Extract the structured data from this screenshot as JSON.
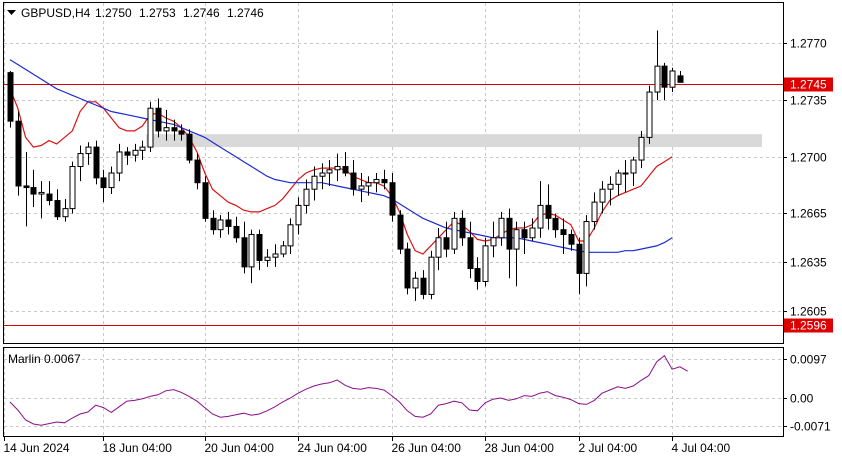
{
  "chart_data": [
    {
      "type": "candlestick",
      "title": "GBPUSD,H4",
      "ohlc_readout": [
        "1.2750",
        "1.2753",
        "1.2746",
        "1.2746"
      ],
      "y_range": [
        1.2585,
        1.2795
      ],
      "y_ticks": [
        "1.2770",
        "1.2735",
        "1.2700",
        "1.2665",
        "1.2635",
        "1.2605"
      ],
      "x_ticks": [
        "14 Jun 2024",
        "18 Jun 04:00",
        "20 Jun 04:00",
        "24 Jun 04:00",
        "26 Jun 04:00",
        "28 Jun 04:00",
        "2 Jul 04:00",
        "4 Jul 04:00"
      ],
      "grid": true,
      "horizontal_levels": [
        {
          "value": 1.2745,
          "label": "1.2745",
          "color": "#dd0000"
        },
        {
          "value": 1.2596,
          "label": "1.2596",
          "color": "#dd0000"
        }
      ],
      "zone": {
        "from": 1.2706,
        "to": 1.2714,
        "start_bar": 18,
        "color": "#d9d9d9"
      },
      "candles": [
        [
          1.2752,
          1.2753,
          1.2718,
          1.2722
        ],
        [
          1.2722,
          1.2728,
          1.2676,
          1.2682
        ],
        [
          1.2682,
          1.2703,
          1.2657,
          1.2681
        ],
        [
          1.2681,
          1.2692,
          1.2669,
          1.2677
        ],
        [
          1.2677,
          1.2685,
          1.2662,
          1.2678
        ],
        [
          1.2677,
          1.2685,
          1.267,
          1.2673
        ],
        [
          1.2673,
          1.268,
          1.2661,
          1.2663
        ],
        [
          1.2663,
          1.2674,
          1.266,
          1.2668
        ],
        [
          1.2668,
          1.2697,
          1.2665,
          1.2694
        ],
        [
          1.2694,
          1.2707,
          1.2685,
          1.2702
        ],
        [
          1.2702,
          1.2709,
          1.2695,
          1.2706
        ],
        [
          1.2706,
          1.271,
          1.2683,
          1.2687
        ],
        [
          1.2687,
          1.2692,
          1.2672,
          1.2681
        ],
        [
          1.2681,
          1.2694,
          1.2677,
          1.269
        ],
        [
          1.269,
          1.2708,
          1.2685,
          1.2703
        ],
        [
          1.2703,
          1.2706,
          1.2695,
          1.2701
        ],
        [
          1.2701,
          1.2708,
          1.2697,
          1.2704
        ],
        [
          1.2704,
          1.271,
          1.2698,
          1.2706
        ],
        [
          1.2706,
          1.2734,
          1.2703,
          1.273
        ],
        [
          1.273,
          1.2736,
          1.2712,
          1.2716
        ],
        [
          1.2716,
          1.2729,
          1.271,
          1.2718
        ],
        [
          1.2718,
          1.2723,
          1.271,
          1.2716
        ],
        [
          1.2716,
          1.272,
          1.271,
          1.2714
        ],
        [
          1.2714,
          1.2717,
          1.2696,
          1.2698
        ],
        [
          1.2698,
          1.2702,
          1.268,
          1.2684
        ],
        [
          1.2684,
          1.2688,
          1.266,
          1.2662
        ],
        [
          1.2662,
          1.2667,
          1.2652,
          1.2655
        ],
        [
          1.2655,
          1.2664,
          1.265,
          1.2661
        ],
        [
          1.2661,
          1.2666,
          1.2652,
          1.2657
        ],
        [
          1.2657,
          1.2663,
          1.2647,
          1.265
        ],
        [
          1.265,
          1.266,
          1.2628,
          1.2632
        ],
        [
          1.2632,
          1.2655,
          1.2622,
          1.2652
        ],
        [
          1.2652,
          1.2655,
          1.263,
          1.2636
        ],
        [
          1.2636,
          1.2643,
          1.2632,
          1.2638
        ],
        [
          1.2638,
          1.2646,
          1.2632,
          1.264
        ],
        [
          1.264,
          1.2648,
          1.2638,
          1.2645
        ],
        [
          1.2645,
          1.2662,
          1.264,
          1.2658
        ],
        [
          1.2658,
          1.2675,
          1.2652,
          1.267
        ],
        [
          1.267,
          1.2686,
          1.2665,
          1.268
        ],
        [
          1.268,
          1.2694,
          1.2673,
          1.2688
        ],
        [
          1.2688,
          1.2696,
          1.268,
          1.269
        ],
        [
          1.269,
          1.2698,
          1.2682,
          1.2692
        ],
        [
          1.2692,
          1.2702,
          1.2685,
          1.2694
        ],
        [
          1.2694,
          1.2703,
          1.2688,
          1.269
        ],
        [
          1.269,
          1.2698,
          1.2676,
          1.268
        ],
        [
          1.268,
          1.269,
          1.2672,
          1.2682
        ],
        [
          1.2682,
          1.2688,
          1.2676,
          1.2684
        ],
        [
          1.2684,
          1.269,
          1.2678,
          1.2686
        ],
        [
          1.2686,
          1.2692,
          1.268,
          1.2684
        ],
        [
          1.2684,
          1.269,
          1.266,
          1.2664
        ],
        [
          1.2664,
          1.2667,
          1.264,
          1.2643
        ],
        [
          1.2643,
          1.2647,
          1.2615,
          1.2619
        ],
        [
          1.2619,
          1.2629,
          1.2611,
          1.2625
        ],
        [
          1.2625,
          1.263,
          1.2612,
          1.2615
        ],
        [
          1.2615,
          1.2642,
          1.2612,
          1.2638
        ],
        [
          1.2638,
          1.2656,
          1.263,
          1.265
        ],
        [
          1.265,
          1.266,
          1.2638,
          1.2643
        ],
        [
          1.2643,
          1.2666,
          1.264,
          1.2662
        ],
        [
          1.2662,
          1.2667,
          1.2645,
          1.265
        ],
        [
          1.265,
          1.266,
          1.2625,
          1.2631
        ],
        [
          1.2631,
          1.2638,
          1.2618,
          1.2623
        ],
        [
          1.2623,
          1.265,
          1.262,
          1.2645
        ],
        [
          1.2645,
          1.266,
          1.2638,
          1.265
        ],
        [
          1.265,
          1.2666,
          1.2645,
          1.2662
        ],
        [
          1.2662,
          1.2668,
          1.2625,
          1.2643
        ],
        [
          1.2643,
          1.266,
          1.262,
          1.2655
        ],
        [
          1.2655,
          1.266,
          1.264,
          1.265
        ],
        [
          1.265,
          1.2662,
          1.2648,
          1.2656
        ],
        [
          1.2656,
          1.2685,
          1.265,
          1.267
        ],
        [
          1.267,
          1.2683,
          1.2655,
          1.2662
        ],
        [
          1.2662,
          1.2665,
          1.265,
          1.2655
        ],
        [
          1.2655,
          1.2662,
          1.264,
          1.2652
        ],
        [
          1.2652,
          1.2655,
          1.2642,
          1.2646
        ],
        [
          1.2646,
          1.265,
          1.2615,
          1.2628
        ],
        [
          1.2628,
          1.2664,
          1.262,
          1.266
        ],
        [
          1.266,
          1.2678,
          1.2655,
          1.2672
        ],
        [
          1.2672,
          1.2685,
          1.2665,
          1.268
        ],
        [
          1.268,
          1.2688,
          1.267,
          1.2683
        ],
        [
          1.2683,
          1.2692,
          1.2676,
          1.269
        ],
        [
          1.269,
          1.2698,
          1.2678,
          1.269
        ],
        [
          1.269,
          1.27,
          1.2682,
          1.2698
        ],
        [
          1.2698,
          1.2716,
          1.2693,
          1.2712
        ],
        [
          1.2712,
          1.2744,
          1.2708,
          1.274
        ],
        [
          1.274,
          1.2778,
          1.2735,
          1.2756
        ],
        [
          1.2756,
          1.2758,
          1.2735,
          1.2743
        ],
        [
          1.2743,
          1.2755,
          1.274,
          1.2753
        ],
        [
          1.275,
          1.2753,
          1.2746,
          1.2746
        ]
      ],
      "series": [
        {
          "name": "",
          "color": "#dd1111",
          "values": [
            1.2742,
            1.273,
            1.2712,
            1.2706,
            1.2707,
            1.271,
            1.2708,
            1.2712,
            1.2716,
            1.2728,
            1.2734,
            1.2734,
            1.273,
            1.2724,
            1.2718,
            1.2716,
            1.2716,
            1.2719,
            1.2726,
            1.2727,
            1.2724,
            1.2722,
            1.2718,
            1.2712,
            1.2703,
            1.269,
            1.268,
            1.2676,
            1.2672,
            1.267,
            1.2667,
            1.2666,
            1.2666,
            1.2668,
            1.267,
            1.2674,
            1.268,
            1.2686,
            1.269,
            1.2692,
            1.2693,
            1.2693,
            1.2693,
            1.2692,
            1.2688,
            1.2686,
            1.2684,
            1.2684,
            1.2682,
            1.2676,
            1.2666,
            1.2652,
            1.2642,
            1.264,
            1.2645,
            1.265,
            1.2655,
            1.266,
            1.2658,
            1.2654,
            1.2649,
            1.2648,
            1.2649,
            1.2652,
            1.2655,
            1.2656,
            1.2656,
            1.2658,
            1.2664,
            1.2665,
            1.2664,
            1.2661,
            1.2658,
            1.2648,
            1.2648,
            1.2656,
            1.2666,
            1.2673,
            1.2676,
            1.2678,
            1.268,
            1.2682,
            1.2688,
            1.2694,
            1.2697,
            1.27
          ]
        },
        {
          "name": "",
          "color": "#1a2bd6",
          "values": [
            1.276,
            1.2757,
            1.2754,
            1.2751,
            1.2748,
            1.2745,
            1.2742,
            1.274,
            1.2738,
            1.2736,
            1.2734,
            1.2732,
            1.273,
            1.2728,
            1.2727,
            1.2726,
            1.2725,
            1.2724,
            1.2723,
            1.2722,
            1.2721,
            1.272,
            1.2718,
            1.2716,
            1.2714,
            1.2712,
            1.2709,
            1.2706,
            1.2703,
            1.27,
            1.2697,
            1.2694,
            1.2691,
            1.2688,
            1.2686,
            1.2685,
            1.2684,
            1.2684,
            1.2684,
            1.2684,
            1.2684,
            1.2683,
            1.2682,
            1.2681,
            1.268,
            1.2679,
            1.2678,
            1.2677,
            1.2676,
            1.2674,
            1.2671,
            1.2668,
            1.2665,
            1.2662,
            1.266,
            1.2658,
            1.2656,
            1.2655,
            1.2654,
            1.2653,
            1.2652,
            1.2651,
            1.265,
            1.265,
            1.265,
            1.265,
            1.2649,
            1.2648,
            1.2647,
            1.2646,
            1.2645,
            1.2644,
            1.2643,
            1.2642,
            1.2641,
            1.2641,
            1.2641,
            1.2641,
            1.2641,
            1.2642,
            1.2642,
            1.2643,
            1.2644,
            1.2645,
            1.2647,
            1.265
          ]
        }
      ]
    },
    {
      "type": "line",
      "title": "Marlin 0.0067",
      "y_range": [
        -0.0095,
        0.0125
      ],
      "y_ticks": [
        "0.0097",
        "0.00",
        "-0.0071"
      ],
      "series": [
        {
          "name": "",
          "color": "#8b0e8b",
          "values": [
            -0.001,
            -0.003,
            -0.0055,
            -0.0065,
            -0.0068,
            -0.0064,
            -0.006,
            -0.0062,
            -0.005,
            -0.004,
            -0.0035,
            -0.0018,
            -0.0024,
            -0.0036,
            -0.0022,
            -0.0008,
            -0.0006,
            -0.0002,
            0.0004,
            0.0008,
            0.0018,
            0.0021,
            0.0014,
            0.0004,
            -0.0008,
            -0.0024,
            -0.004,
            -0.0048,
            -0.0046,
            -0.0042,
            -0.0038,
            -0.0043,
            -0.004,
            -0.0032,
            -0.0022,
            -0.001,
            0.0,
            0.0012,
            0.0022,
            0.003,
            0.0035,
            0.0038,
            0.0045,
            0.0032,
            0.0024,
            0.0022,
            0.0026,
            0.0024,
            0.002,
            0.0006,
            -0.001,
            -0.0032,
            -0.0046,
            -0.0048,
            -0.004,
            -0.0018,
            -0.0014,
            -0.0008,
            -0.0012,
            -0.003,
            -0.0032,
            -0.0012,
            -0.0003,
            0.0,
            -0.0006,
            -0.0002,
            0.0006,
            0.0004,
            0.0012,
            0.0016,
            0.0006,
            0.0002,
            -0.0004,
            -0.0014,
            -0.0016,
            -0.0006,
            0.0012,
            0.002,
            0.0028,
            0.0024,
            0.003,
            0.0044,
            0.0056,
            0.009,
            0.0106,
            0.0072,
            0.0078,
            0.0067
          ]
        }
      ]
    }
  ]
}
